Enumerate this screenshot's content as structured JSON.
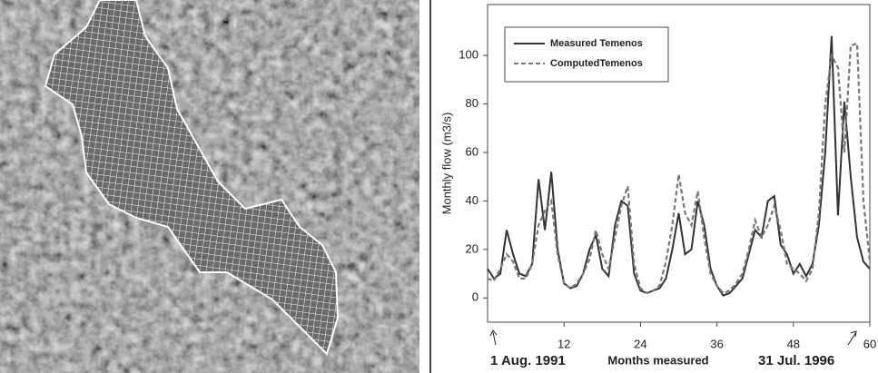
{
  "chart_data": {
    "type": "line",
    "y_label": "Monthly flow (m3/s)",
    "x_label": "Months measured",
    "start_label": "1 Aug. 1991",
    "end_label": "31 Jul. 1996",
    "x": [
      0,
      1,
      2,
      3,
      4,
      5,
      6,
      7,
      8,
      9,
      10,
      11,
      12,
      13,
      14,
      15,
      16,
      17,
      18,
      19,
      20,
      21,
      22,
      23,
      24,
      25,
      26,
      27,
      28,
      29,
      30,
      31,
      32,
      33,
      34,
      35,
      36,
      37,
      38,
      39,
      40,
      41,
      42,
      43,
      44,
      45,
      46,
      47,
      48,
      49,
      50,
      51,
      52,
      53,
      54,
      55,
      56,
      57,
      58,
      59,
      60
    ],
    "xlim": [
      0,
      60
    ],
    "xticks": [
      12,
      24,
      36,
      48,
      60
    ],
    "ylim": [
      -10,
      121
    ],
    "yticks": [
      0,
      20,
      40,
      60,
      80,
      100
    ],
    "series": [
      {
        "name": "Measured Temenos",
        "color": "#333333",
        "dash": false,
        "values": [
          12,
          8,
          10,
          28,
          18,
          10,
          9,
          14,
          49,
          28,
          52,
          20,
          6,
          4,
          5,
          10,
          20,
          26,
          12,
          9,
          30,
          40,
          38,
          10,
          3,
          2,
          3,
          4,
          8,
          20,
          35,
          18,
          20,
          40,
          30,
          12,
          5,
          1,
          2,
          5,
          8,
          18,
          28,
          25,
          40,
          42,
          22,
          18,
          10,
          14,
          9,
          14,
          30,
          60,
          108,
          34,
          81,
          50,
          25,
          15,
          12
        ]
      },
      {
        "name": "ComputedTemenos",
        "color": "#777777",
        "dash": true,
        "values": [
          8,
          7,
          12,
          18,
          15,
          8,
          8,
          14,
          30,
          36,
          40,
          18,
          6,
          4,
          6,
          10,
          16,
          28,
          18,
          12,
          25,
          38,
          46,
          14,
          4,
          2,
          3,
          5,
          15,
          30,
          51,
          35,
          30,
          44,
          25,
          10,
          5,
          2,
          3,
          6,
          10,
          20,
          32,
          25,
          30,
          38,
          28,
          14,
          12,
          10,
          7,
          12,
          35,
          80,
          100,
          95,
          60,
          104,
          105,
          40,
          15
        ]
      }
    ]
  }
}
